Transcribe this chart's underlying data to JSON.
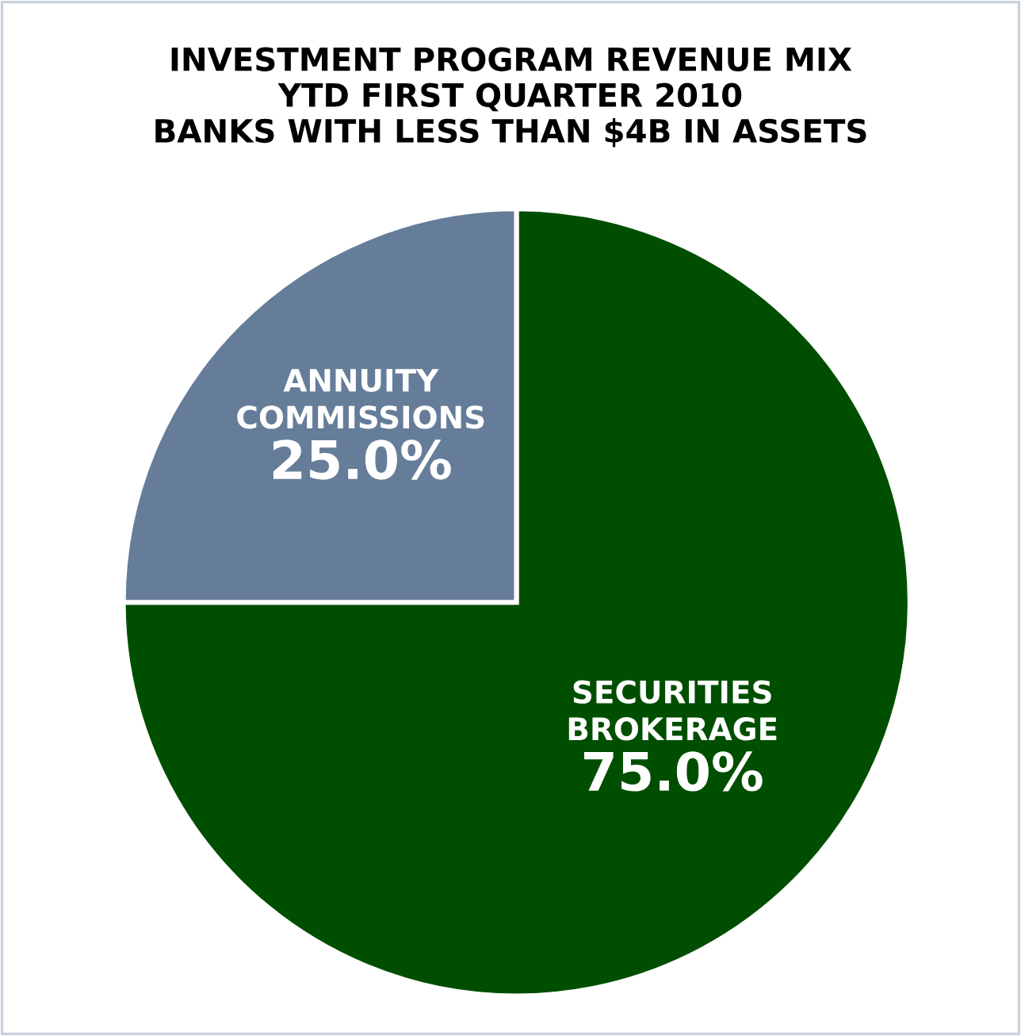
{
  "chart_data": {
    "type": "pie",
    "title": "INVESTMENT PROGRAM REVENUE MIX\nYTD FIRST QUARTER 2010\nBANKS WITH LESS THAN $4B IN ASSETS",
    "categories": [
      "ANNUITY\nCOMMISSIONS",
      "SECURITIES\nBROKERAGE"
    ],
    "values": [
      25.0,
      75.0
    ],
    "value_labels": [
      "25.0%",
      "75.0%"
    ],
    "colors": [
      "#667d99",
      "#004f00"
    ],
    "legend": false
  }
}
